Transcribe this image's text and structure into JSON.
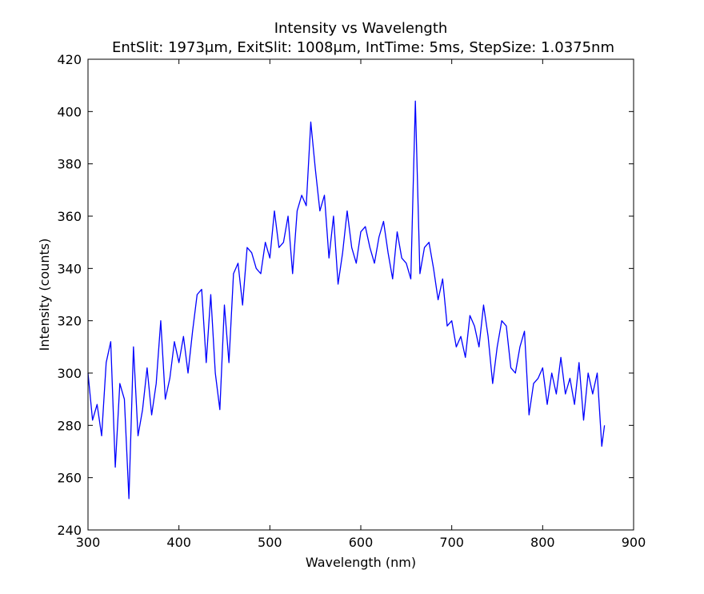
{
  "chart_data": {
    "type": "line",
    "title": "Intensity vs Wavelength",
    "subtitle": "EntSlit: 1973μm, ExitSlit: 1008μm, IntTime: 5ms, StepSize: 1.0375nm",
    "xlabel": "Wavelength (nm)",
    "ylabel": "Intensity (counts)",
    "xlim": [
      300,
      900
    ],
    "ylim": [
      240,
      420
    ],
    "x_ticks": [
      300,
      400,
      500,
      600,
      700,
      800,
      900
    ],
    "y_ticks": [
      240,
      260,
      280,
      300,
      320,
      340,
      360,
      380,
      400,
      420
    ],
    "grid": false,
    "series": [
      {
        "color": "#0000ff",
        "x": [
          300,
          305,
          310,
          315,
          320,
          325,
          330,
          335,
          340,
          345,
          350,
          355,
          360,
          365,
          370,
          375,
          380,
          385,
          390,
          395,
          400,
          405,
          410,
          415,
          420,
          425,
          430,
          435,
          440,
          445,
          450,
          455,
          460,
          465,
          470,
          475,
          480,
          485,
          490,
          495,
          500,
          505,
          510,
          515,
          520,
          525,
          530,
          535,
          540,
          545,
          550,
          555,
          560,
          565,
          570,
          575,
          580,
          585,
          590,
          595,
          600,
          605,
          610,
          615,
          620,
          625,
          630,
          635,
          640,
          645,
          650,
          655,
          660,
          665,
          670,
          675,
          680,
          685,
          690,
          695,
          700,
          705,
          710,
          715,
          720,
          725,
          730,
          735,
          740,
          745,
          750,
          755,
          760,
          765,
          770,
          775,
          780,
          785,
          790,
          795,
          800,
          805,
          810,
          815,
          820,
          825,
          830,
          835,
          840,
          845,
          850,
          855,
          860,
          865,
          868
        ],
        "y": [
          300,
          282,
          288,
          276,
          304,
          312,
          264,
          296,
          290,
          252,
          310,
          276,
          286,
          302,
          284,
          296,
          320,
          290,
          298,
          312,
          304,
          314,
          300,
          316,
          330,
          332,
          304,
          330,
          300,
          286,
          326,
          304,
          338,
          342,
          326,
          348,
          346,
          340,
          338,
          350,
          344,
          362,
          348,
          350,
          360,
          338,
          362,
          368,
          364,
          396,
          378,
          362,
          368,
          344,
          360,
          334,
          346,
          362,
          348,
          342,
          354,
          356,
          348,
          342,
          352,
          358,
          346,
          336,
          354,
          344,
          342,
          336,
          404,
          338,
          348,
          350,
          340,
          328,
          336,
          318,
          320,
          310,
          314,
          306,
          322,
          318,
          310,
          326,
          314,
          296,
          310,
          320,
          318,
          302,
          300,
          310,
          316,
          284,
          296,
          298,
          302,
          288,
          300,
          292,
          306,
          292,
          298,
          288,
          304,
          282,
          300,
          292,
          300,
          272,
          280
        ]
      }
    ]
  }
}
